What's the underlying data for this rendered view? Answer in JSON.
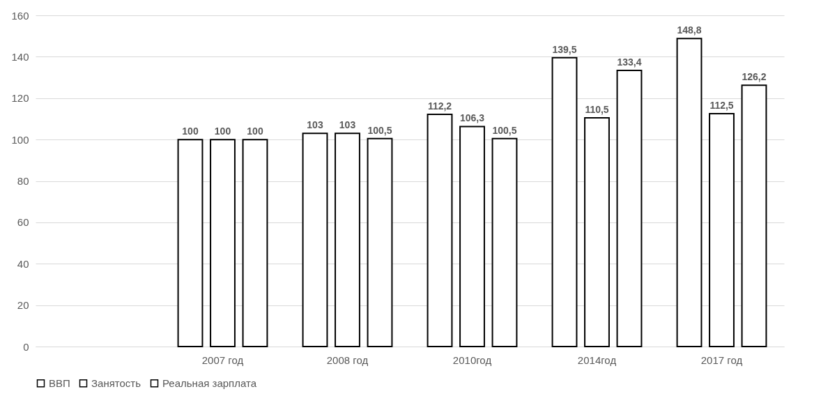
{
  "chart_data": {
    "type": "bar",
    "categories": [
      null,
      "2007 год",
      "2008 год",
      "2010год",
      "2014год",
      "2017 год"
    ],
    "series": [
      {
        "name": "ВВП",
        "color": "#ffffff",
        "values": [
          null,
          100,
          103,
          112.2,
          139.5,
          148.8
        ],
        "value_labels": [
          null,
          "100",
          "103",
          "112,2",
          "139,5",
          "148,8"
        ]
      },
      {
        "name": "Занятость",
        "color": "#ffffff",
        "values": [
          null,
          100,
          103,
          106.3,
          110.5,
          112.5
        ],
        "value_labels": [
          null,
          "100",
          "103",
          "106,3",
          "110,5",
          "112,5"
        ]
      },
      {
        "name": "Реальная зарплата",
        "color": "#ffffff",
        "values": [
          null,
          100,
          100.5,
          100.5,
          133.4,
          126.2
        ],
        "value_labels": [
          null,
          "100",
          "100,5",
          "100,5",
          "133,4",
          "126,2"
        ]
      }
    ],
    "ylim": [
      0,
      160
    ],
    "yticks": [
      0,
      20,
      40,
      60,
      80,
      100,
      120,
      140,
      160
    ],
    "grid": "y",
    "legend": "bottom"
  }
}
